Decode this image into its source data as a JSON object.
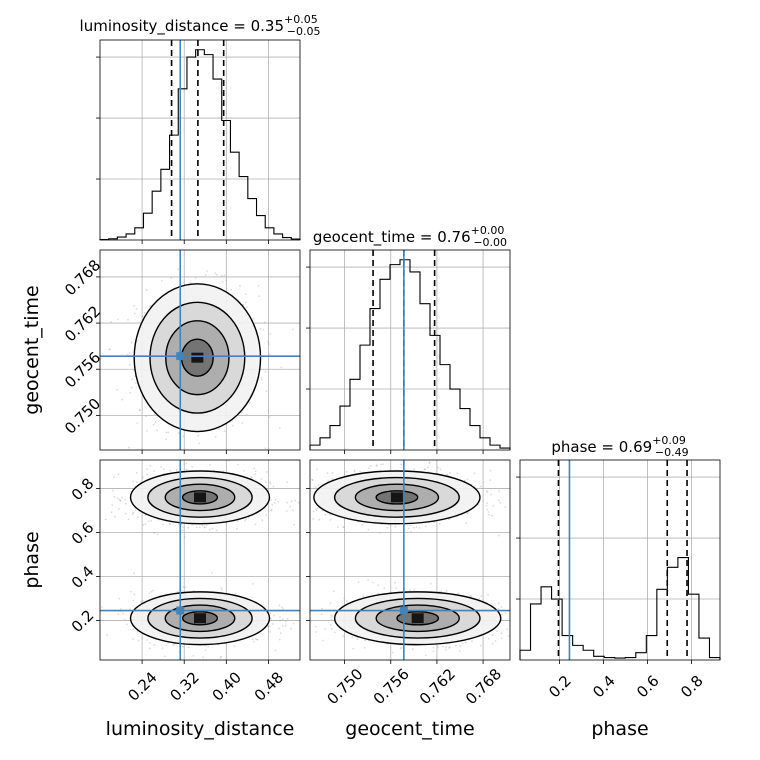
{
  "colors": {
    "truth": "#4682b4",
    "hist": "#000000",
    "grid": "#b0b0b0"
  },
  "titles": [
    {
      "name": "luminosity_distance",
      "value": "0.35",
      "plus": "+0.05",
      "minus": "−0.05"
    },
    {
      "name": "geocent_time",
      "value": "0.76",
      "plus": "+0.00",
      "minus": "−0.00"
    },
    {
      "name": "phase",
      "value": "0.69",
      "plus": "+0.09",
      "minus": "−0.49"
    }
  ],
  "axis_labels": {
    "x": [
      "luminosity_distance",
      "geocent_time",
      "phase"
    ],
    "y": [
      "geocent_time",
      "phase"
    ]
  },
  "chart_data": {
    "type": "corner",
    "parameters": [
      "luminosity_distance",
      "geocent_time",
      "phase"
    ],
    "ranges": [
      [
        0.16,
        0.54
      ],
      [
        0.7455,
        0.7715
      ],
      [
        0.02,
        0.93
      ]
    ],
    "ticks": {
      "luminosity_distance": [
        "0.24",
        "0.32",
        "0.40",
        "0.48"
      ],
      "geocent_time": [
        "0.750",
        "0.756",
        "0.762",
        "0.768"
      ],
      "phase": [
        "0.2",
        "0.4",
        "0.6",
        "0.8"
      ]
    },
    "truth": [
      0.3125,
      0.7577,
      0.245
    ],
    "quantiles": [
      [
        0.296,
        0.346,
        0.395
      ],
      [
        0.7537,
        0.7577,
        0.7617
      ],
      [
        0.195,
        0.69,
        0.78
      ]
    ],
    "histograms": [
      {
        "param": "luminosity_distance",
        "bins": [
          0.16,
          0.54
        ],
        "counts": [
          0.002,
          0.005,
          0.012,
          0.025,
          0.05,
          0.11,
          0.2,
          0.29,
          0.43,
          0.62,
          0.75,
          0.78,
          0.76,
          0.66,
          0.49,
          0.36,
          0.26,
          0.17,
          0.1,
          0.05,
          0.025,
          0.01,
          0.004
        ]
      },
      {
        "param": "geocent_time",
        "bins": [
          0.7455,
          0.7715
        ],
        "counts": [
          0.02,
          0.05,
          0.1,
          0.18,
          0.29,
          0.43,
          0.58,
          0.7,
          0.76,
          0.78,
          0.73,
          0.6,
          0.47,
          0.35,
          0.25,
          0.17,
          0.1,
          0.05,
          0.02,
          0.008
        ]
      },
      {
        "param": "phase",
        "bins": [
          0.02,
          0.93
        ],
        "counts": [
          0.04,
          0.23,
          0.3,
          0.25,
          0.1,
          0.06,
          0.04,
          0.015,
          0.01,
          0.008,
          0.01,
          0.03,
          0.1,
          0.29,
          0.38,
          0.42,
          0.27,
          0.09,
          0.01
        ]
      }
    ],
    "contours": [
      {
        "x": "luminosity_distance",
        "y": "geocent_time",
        "blobs": [
          {
            "cx": 0.345,
            "cy": 0.7575,
            "sx": 0.05,
            "sy": 0.004
          }
        ]
      },
      {
        "x": "luminosity_distance",
        "y": "phase",
        "blobs": [
          {
            "cx": 0.35,
            "cy": 0.76,
            "sx": 0.055,
            "sy": 0.05
          },
          {
            "cx": 0.35,
            "cy": 0.21,
            "sx": 0.055,
            "sy": 0.05
          }
        ]
      },
      {
        "x": "geocent_time",
        "y": "phase",
        "blobs": [
          {
            "cx": 0.7568,
            "cy": 0.76,
            "sx": 0.0045,
            "sy": 0.05
          },
          {
            "cx": 0.7595,
            "cy": 0.21,
            "sx": 0.0045,
            "sy": 0.05
          }
        ]
      }
    ],
    "grid": true
  }
}
